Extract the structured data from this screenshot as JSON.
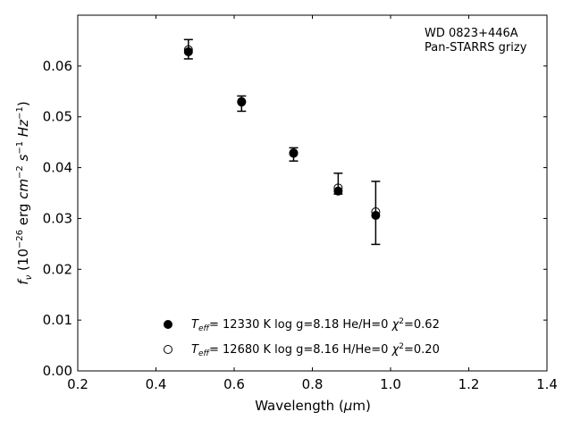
{
  "chart_data": {
    "type": "scatter",
    "annotation_lines": [
      "WD 0823+446A",
      "Pan-STARRS grizy"
    ],
    "xlabel": {
      "pre": "Wavelength (",
      "greek": "μ",
      "post": "m)"
    },
    "ylabel": {
      "f": "f",
      "nu": "ν",
      "a": " (10",
      "e1": "−26",
      "b": " erg ",
      "cm": "cm",
      "e2": "−2",
      "c": " ",
      "s": "s",
      "e3": "−1",
      "d": " ",
      "hz": "Hz",
      "e4": "−1",
      "end": ")"
    },
    "xlim": [
      0.2,
      1.4
    ],
    "ylim": [
      0.0,
      0.07
    ],
    "xticks": [
      0.2,
      0.4,
      0.6,
      0.8,
      1.0,
      1.2,
      1.4
    ],
    "xtick_labels": [
      "0.2",
      "0.4",
      "0.6",
      "0.8",
      "1.0",
      "1.2",
      "1.4"
    ],
    "yticks": [
      0.0,
      0.01,
      0.02,
      0.03,
      0.04,
      0.05,
      0.06
    ],
    "ytick_labels": [
      "0.00",
      "0.01",
      "0.02",
      "0.03",
      "0.04",
      "0.05",
      "0.06"
    ],
    "grid": false,
    "legend_position": "bottom-center",
    "observed": {
      "x": [
        0.483,
        0.619,
        0.752,
        0.866,
        0.962
      ],
      "y": [
        0.0633,
        0.0526,
        0.0426,
        0.0368,
        0.0311
      ],
      "yerr_low": [
        0.0019,
        0.0015,
        0.0013,
        0.002,
        0.0062
      ],
      "yerr_high": [
        0.0019,
        0.0015,
        0.0013,
        0.0021,
        0.0062
      ]
    },
    "series": [
      {
        "name": "T_eff= 12330 K log g=8.18 He/H=0 χ²=0.62",
        "marker": "filled",
        "x": [
          0.483,
          0.619,
          0.752,
          0.866,
          0.962
        ],
        "y": [
          0.0628,
          0.0529,
          0.0429,
          0.0354,
          0.0306
        ]
      },
      {
        "name": "T_eff= 12680 K log g=8.16 H/He=0 χ²=0.20",
        "marker": "open",
        "x": [
          0.483,
          0.619,
          0.752,
          0.866,
          0.962
        ],
        "y": [
          0.0632,
          0.053,
          0.0428,
          0.036,
          0.0313
        ]
      }
    ],
    "legend": [
      {
        "t": "T",
        "sub": "eff",
        "mid": "= 12330 K  log g=8.18  He/H=0  ",
        "chi": "χ",
        "sup": "2",
        "end": "=0.62"
      },
      {
        "t": "T",
        "sub": "eff",
        "mid": "= 12680 K  log g=8.16  H/He=0  ",
        "chi": "χ",
        "sup": "2",
        "end": "=0.20"
      }
    ]
  }
}
